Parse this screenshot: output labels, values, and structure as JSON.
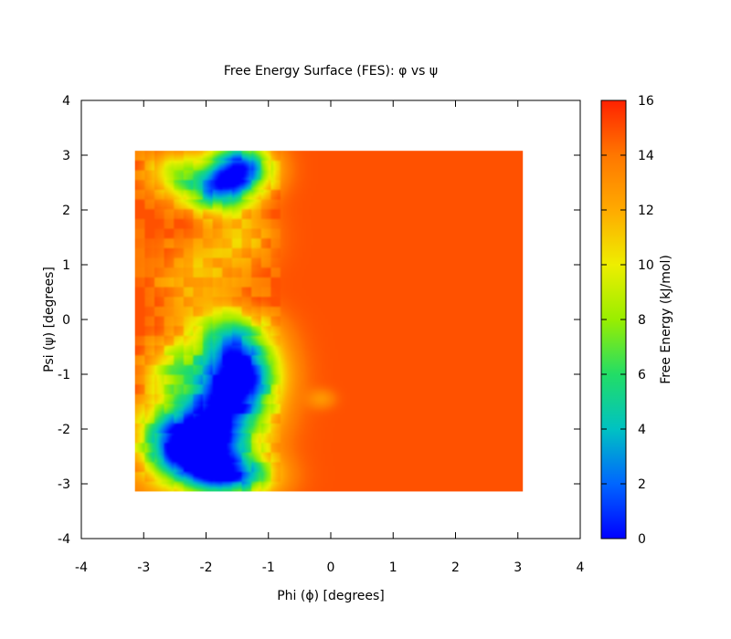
{
  "chart_data": {
    "type": "heatmap",
    "title": "Free Energy Surface (FES): φ vs ψ",
    "xlabel": "Phi (ϕ) [degrees]",
    "ylabel": "Psi (ψ) [degrees]",
    "colorbar_label": "Free Energy (kJ/mol)",
    "xlim": [
      -4,
      4
    ],
    "ylim": [
      -4,
      4
    ],
    "clim": [
      0,
      16
    ],
    "x_ticks": [
      "-4",
      "-3",
      "-2",
      "-1",
      "0",
      "1",
      "2",
      "3",
      "4"
    ],
    "y_ticks": [
      "4",
      "3",
      "2",
      "1",
      "0",
      "-1",
      "-2",
      "-3",
      "-4"
    ],
    "colorbar_ticks": [
      "16",
      "14",
      "12",
      "10",
      "8",
      "6",
      "4",
      "2",
      "0"
    ],
    "data_extent": {
      "x": [
        -3.14,
        3.08
      ],
      "y": [
        -3.14,
        3.08
      ]
    },
    "background_value": 14.9,
    "colormap": [
      "#0000ff",
      "#0066ff",
      "#00c2c2",
      "#22dd66",
      "#99ee00",
      "#eeee00",
      "#ffaa00",
      "#ff7700",
      "#ff2200"
    ],
    "basins": [
      {
        "phi": -1.45,
        "psi": 2.75,
        "spread_phi": 0.35,
        "spread_psi": 0.32,
        "depth": 14.0
      },
      {
        "phi": -1.85,
        "psi": 2.35,
        "spread_phi": 0.35,
        "spread_psi": 0.3,
        "depth": 9.5
      },
      {
        "phi": -2.5,
        "psi": 2.7,
        "spread_phi": 0.32,
        "spread_psi": 0.3,
        "depth": 6.0
      },
      {
        "phi": -1.5,
        "psi": -1.0,
        "spread_phi": 0.45,
        "spread_psi": 0.42,
        "depth": 14.5
      },
      {
        "phi": -1.75,
        "psi": -1.8,
        "spread_phi": 0.5,
        "spread_psi": 0.45,
        "depth": 12.5
      },
      {
        "phi": -2.2,
        "psi": -2.5,
        "spread_phi": 0.45,
        "spread_psi": 0.4,
        "depth": 12.0
      },
      {
        "phi": -1.55,
        "psi": -2.85,
        "spread_phi": 0.45,
        "spread_psi": 0.3,
        "depth": 11.5
      },
      {
        "phi": -1.6,
        "psi": -0.3,
        "spread_phi": 0.45,
        "spread_psi": 0.35,
        "depth": 7.5
      },
      {
        "phi": -2.6,
        "psi": -2.1,
        "spread_phi": 0.4,
        "spread_psi": 0.45,
        "depth": 7.0
      },
      {
        "phi": -2.55,
        "psi": -0.9,
        "spread_phi": 0.3,
        "spread_psi": 0.35,
        "depth": 5.5
      },
      {
        "phi": -2.15,
        "psi": 0.75,
        "spread_phi": 0.45,
        "spread_psi": 0.55,
        "depth": 3.2
      },
      {
        "phi": -1.4,
        "psi": 1.5,
        "spread_phi": 0.35,
        "spread_psi": 0.4,
        "depth": 3.0
      },
      {
        "phi": -0.15,
        "psi": -1.45,
        "spread_phi": 0.15,
        "spread_psi": 0.12,
        "depth": 2.0
      }
    ]
  }
}
